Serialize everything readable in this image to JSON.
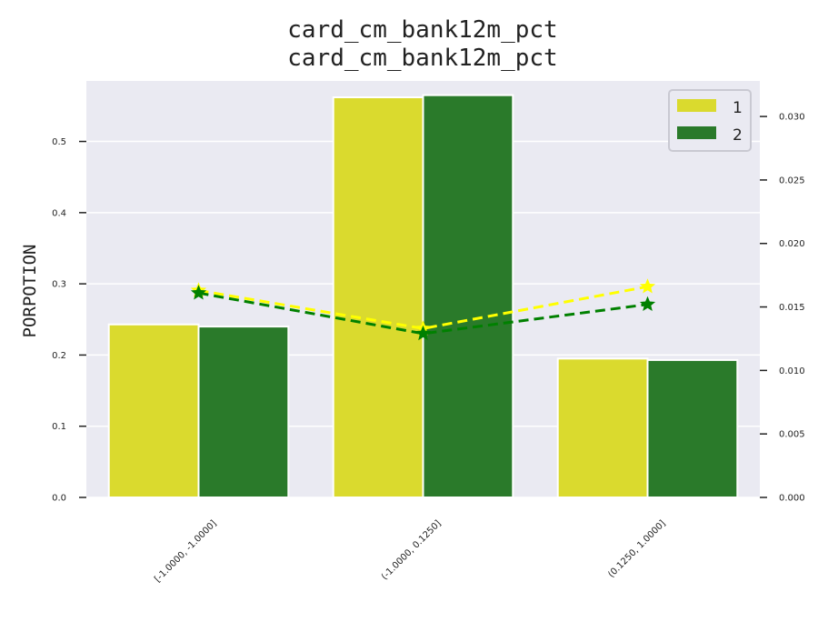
{
  "chart_data": {
    "type": "bar",
    "title_lines": [
      "card_cm_bank12m_pct",
      "card_cm_bank12m_pct"
    ],
    "ylabel": "PORPOTION",
    "categories": [
      "[-1.0000, -1.0000]",
      "(-1.0000, 0.1250]",
      "(0.1250, 1.0000]"
    ],
    "ylim": [
      0,
      0.585
    ],
    "y_ticks": [
      0.0,
      0.1,
      0.2,
      0.3,
      0.4,
      0.5
    ],
    "y_tick_labels": [
      "0.0",
      "0.1",
      "0.2",
      "0.3",
      "0.4",
      "0.5"
    ],
    "y2lim": [
      0,
      0.0328
    ],
    "y2_ticks": [
      0.0,
      0.005,
      0.01,
      0.015,
      0.02,
      0.025,
      0.03
    ],
    "y2_tick_labels": [
      "0.000",
      "0.005",
      "0.010",
      "0.015",
      "0.020",
      "0.025",
      "0.030"
    ],
    "grid": true,
    "legend_position": "top-right",
    "series": [
      {
        "name": "1",
        "color": "#dada2e",
        "line_color": "#ffff00",
        "values": [
          0.243,
          0.562,
          0.195
        ],
        "line_values": [
          0.0163,
          0.0133,
          0.0166
        ]
      },
      {
        "name": "2",
        "color": "#2a7a2a",
        "line_color": "#008000",
        "values": [
          0.24,
          0.565,
          0.193
        ],
        "line_values": [
          0.0161,
          0.0129,
          0.0152
        ]
      }
    ]
  }
}
